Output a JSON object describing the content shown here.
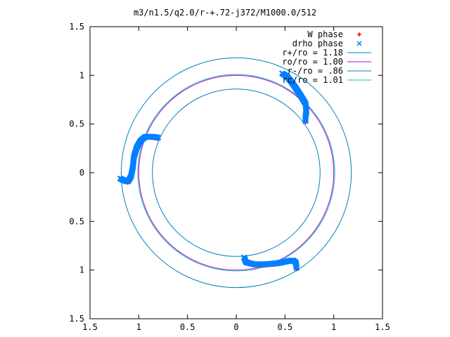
{
  "chart_data": {
    "type": "scatter",
    "title": "m3/n1.5/q2.0/r-+.72-j372/M1000.0/512",
    "xlabel": "",
    "ylabel": "",
    "xlim": [
      -1.5,
      1.5
    ],
    "ylim": [
      -1.5,
      1.5
    ],
    "x_tick_values": [
      -1.5,
      -1,
      -0.5,
      0,
      0.5,
      1,
      1.5
    ],
    "x_tick_labels": [
      "1.5",
      "1",
      "0.5",
      "0",
      "0.5",
      "1",
      "1.5"
    ],
    "y_tick_values": [
      1.5,
      1,
      0.5,
      0,
      -0.5,
      -1,
      -1.5
    ],
    "y_tick_labels": [
      "1.5",
      "1",
      "0.5",
      "0",
      "0.5",
      "1",
      "1.5"
    ],
    "grid": false,
    "legend_position": "top-right",
    "series": [
      {
        "name": "W phase",
        "kind": "points",
        "marker": "+",
        "color": "#ff0000",
        "arms": [
          [
            [
              -1.19,
              -0.07
            ],
            [
              -1.15,
              -0.09
            ],
            [
              -1.11,
              -0.1
            ],
            [
              -1.08,
              -0.05
            ],
            [
              -1.06,
              0.05
            ],
            [
              -1.05,
              0.15
            ],
            [
              -1.02,
              0.25
            ],
            [
              -0.98,
              0.32
            ],
            [
              -0.93,
              0.36
            ],
            [
              -0.86,
              0.36
            ],
            [
              -0.8,
              0.35
            ]
          ],
          [
            [
              0.47,
              1.01
            ],
            [
              0.52,
              0.98
            ],
            [
              0.56,
              0.93
            ],
            [
              0.61,
              0.86
            ],
            [
              0.65,
              0.8
            ],
            [
              0.68,
              0.75
            ],
            [
              0.71,
              0.7
            ],
            [
              0.72,
              0.63
            ],
            [
              0.71,
              0.56
            ],
            [
              0.71,
              0.52
            ]
          ],
          [
            [
              0.08,
              -0.88
            ],
            [
              0.1,
              -0.93
            ],
            [
              0.18,
              -0.95
            ],
            [
              0.3,
              -0.95
            ],
            [
              0.42,
              -0.94
            ],
            [
              0.52,
              -0.92
            ],
            [
              0.58,
              -0.91
            ],
            [
              0.61,
              -0.93
            ],
            [
              0.62,
              -0.99
            ]
          ]
        ]
      },
      {
        "name": "drho phase",
        "kind": "points",
        "marker": "x",
        "color": "#0080ff",
        "arms": [
          [
            [
              -1.19,
              -0.06
            ],
            [
              -1.15,
              -0.08
            ],
            [
              -1.11,
              -0.09
            ],
            [
              -1.08,
              -0.04
            ],
            [
              -1.06,
              0.06
            ],
            [
              -1.05,
              0.16
            ],
            [
              -1.02,
              0.26
            ],
            [
              -0.98,
              0.33
            ],
            [
              -0.93,
              0.37
            ],
            [
              -0.86,
              0.37
            ],
            [
              -0.8,
              0.36
            ]
          ],
          [
            [
              0.47,
              1.02
            ],
            [
              0.52,
              0.99
            ],
            [
              0.56,
              0.94
            ],
            [
              0.61,
              0.87
            ],
            [
              0.65,
              0.81
            ],
            [
              0.68,
              0.76
            ],
            [
              0.71,
              0.71
            ],
            [
              0.72,
              0.64
            ],
            [
              0.71,
              0.57
            ],
            [
              0.71,
              0.53
            ]
          ],
          [
            [
              0.08,
              -0.87
            ],
            [
              0.1,
              -0.92
            ],
            [
              0.18,
              -0.94
            ],
            [
              0.3,
              -0.94
            ],
            [
              0.42,
              -0.93
            ],
            [
              0.52,
              -0.91
            ],
            [
              0.58,
              -0.9
            ],
            [
              0.61,
              -0.92
            ],
            [
              0.62,
              -0.98
            ]
          ]
        ]
      },
      {
        "name": "r+/ro = 1.18",
        "kind": "circle",
        "radius": 1.18,
        "color": "#0080c0"
      },
      {
        "name": "ro/ro = 1.00",
        "kind": "circle",
        "radius": 1.0,
        "color": "#c000c0"
      },
      {
        "name": "r-/ro = .86",
        "kind": "circle",
        "radius": 0.86,
        "color": "#0080c0"
      },
      {
        "name": "rc/ro = 1.01",
        "kind": "circle",
        "radius": 1.01,
        "color": "#00c0c0"
      }
    ]
  }
}
